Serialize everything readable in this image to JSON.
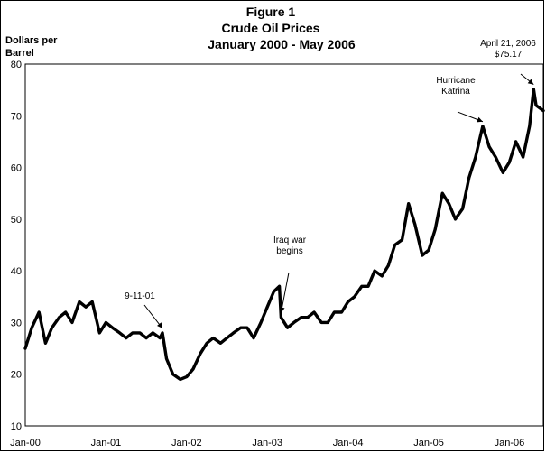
{
  "chart_data": {
    "type": "line",
    "title": "Figure 1",
    "subtitle": "Crude Oil Prices",
    "subtitle2": "January 2000 - May 2006",
    "ylabel_line1": "Dollars per",
    "ylabel_line2": "Barrel",
    "xlabel": "",
    "ylim": [
      10,
      80
    ],
    "yticks": [
      "80",
      "70",
      "60",
      "50",
      "40",
      "30",
      "20",
      "10"
    ],
    "ytick_values": [
      80,
      70,
      60,
      50,
      40,
      30,
      20,
      10
    ],
    "xticks": [
      "Jan-00",
      "Jan-01",
      "Jan-02",
      "Jan-03",
      "Jan-04",
      "Jan-05",
      "Jan-06"
    ],
    "xtick_values": [
      2000.0,
      2001.0,
      2002.0,
      2003.0,
      2004.0,
      2005.0,
      2006.0
    ],
    "xlim": [
      2000.0,
      2006.42
    ],
    "series": [
      {
        "name": "Crude Oil Price",
        "x": [
          2000.0,
          2000.08,
          2000.17,
          2000.25,
          2000.33,
          2000.42,
          2000.5,
          2000.58,
          2000.67,
          2000.75,
          2000.83,
          2000.92,
          2001.0,
          2001.08,
          2001.17,
          2001.25,
          2001.33,
          2001.42,
          2001.5,
          2001.58,
          2001.67,
          2001.7,
          2001.75,
          2001.83,
          2001.92,
          2002.0,
          2002.08,
          2002.17,
          2002.25,
          2002.33,
          2002.42,
          2002.5,
          2002.58,
          2002.67,
          2002.75,
          2002.83,
          2002.92,
          2003.0,
          2003.08,
          2003.15,
          2003.17,
          2003.25,
          2003.33,
          2003.42,
          2003.5,
          2003.58,
          2003.67,
          2003.75,
          2003.83,
          2003.92,
          2004.0,
          2004.08,
          2004.17,
          2004.25,
          2004.33,
          2004.42,
          2004.5,
          2004.58,
          2004.67,
          2004.75,
          2004.83,
          2004.92,
          2005.0,
          2005.08,
          2005.17,
          2005.25,
          2005.33,
          2005.42,
          2005.5,
          2005.58,
          2005.67,
          2005.75,
          2005.83,
          2005.92,
          2006.0,
          2006.08,
          2006.17,
          2006.25,
          2006.3,
          2006.33,
          2006.42
        ],
        "values": [
          25,
          29,
          32,
          26,
          29,
          31,
          32,
          30,
          34,
          33,
          34,
          28,
          30,
          29,
          28,
          27,
          28,
          28,
          27,
          28,
          27,
          28,
          23,
          20,
          19,
          19.5,
          21,
          24,
          26,
          27,
          26,
          27,
          28,
          29,
          29,
          27,
          30,
          33,
          36,
          37,
          31,
          29,
          30,
          31,
          31,
          32,
          30,
          30,
          32,
          32,
          34,
          35,
          37,
          37,
          40,
          39,
          41,
          45,
          46,
          53,
          49,
          43,
          44,
          48,
          55,
          53,
          50,
          52,
          58,
          62,
          68,
          64,
          62,
          59,
          61,
          65,
          62,
          68,
          75.17,
          72,
          71
        ]
      }
    ],
    "annotations": [
      {
        "line1": "9-11-01",
        "line2": "",
        "x": 2001.7,
        "y": 28
      },
      {
        "line1": "Iraq war",
        "line2": "begins",
        "x": 2003.17,
        "y": 31
      },
      {
        "line1": "Hurricane",
        "line2": "Katrina",
        "x": 2005.67,
        "y": 68
      },
      {
        "line1": "April 21, 2006",
        "line2": "$75.17",
        "x": 2006.3,
        "y": 75.17
      }
    ]
  }
}
